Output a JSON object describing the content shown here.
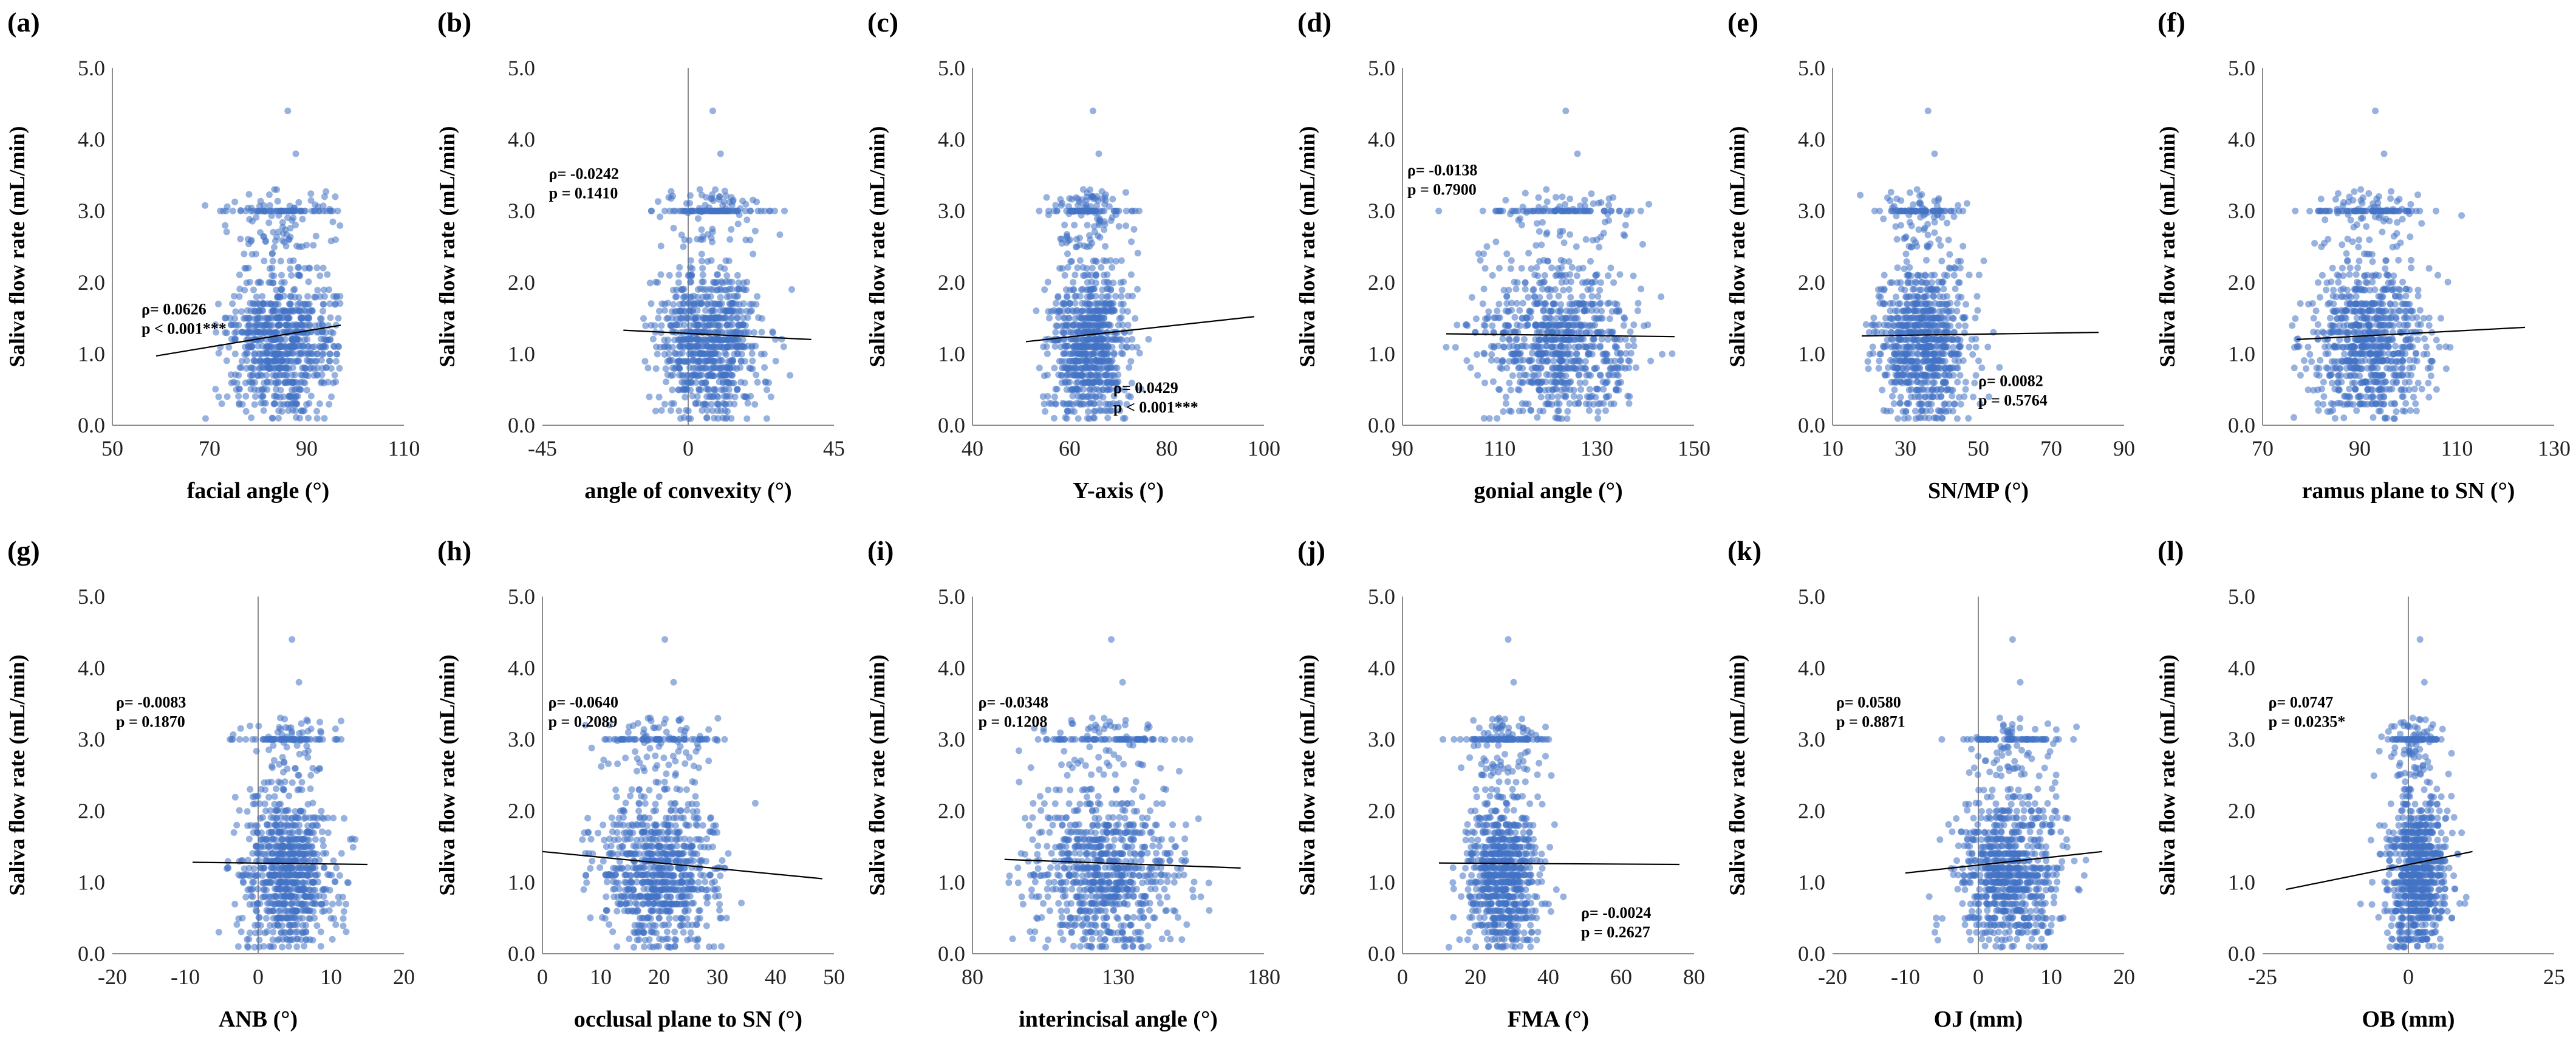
{
  "chart_data": [
    {
      "type": "scatter",
      "letter": "(a)",
      "xlabel": "facial angle (°)",
      "ylabel": "Saliva flow rate (mL/min)",
      "xlim": [
        50,
        110
      ],
      "xticks": [
        "50",
        "70",
        "90",
        "110"
      ],
      "ylim": [
        0,
        5
      ],
      "yticks": [
        "0.0",
        "1.0",
        "2.0",
        "3.0",
        "4.0",
        "5.0"
      ],
      "rho": "ρ= 0.0626",
      "p": "p < 0.001***",
      "annot_x": 56,
      "annot_y": 1.55,
      "cx": 85,
      "sx": 5.5,
      "xmin": 60,
      "xmax": 97,
      "reg": [
        [
          59,
          0.97
        ],
        [
          97,
          1.4
        ]
      ]
    },
    {
      "type": "scatter",
      "letter": "(b)",
      "xlabel": "angle of convexity (°)",
      "ylabel": "Saliva flow rate (mL/min)",
      "xlim": [
        -45,
        45
      ],
      "xticks": [
        "-45",
        "0",
        "45"
      ],
      "ylim": [
        0,
        5
      ],
      "yticks": [
        "0.0",
        "1.0",
        "2.0",
        "3.0",
        "4.0",
        "5.0"
      ],
      "rho": "ρ= -0.0242",
      "p": "p = 0.1410",
      "annot_x": -43,
      "annot_y": 3.45,
      "cx": 6,
      "sx": 8,
      "xmin": -20,
      "xmax": 38,
      "reg": [
        [
          -20,
          1.33
        ],
        [
          38,
          1.2
        ]
      ],
      "vline": 0
    },
    {
      "type": "scatter",
      "letter": "(c)",
      "xlabel": "Y-axis (°)",
      "ylabel": "Saliva flow rate (mL/min)",
      "xlim": [
        40,
        100
      ],
      "xticks": [
        "40",
        "60",
        "80",
        "100"
      ],
      "ylim": [
        0,
        5
      ],
      "yticks": [
        "0.0",
        "1.0",
        "2.0",
        "3.0",
        "4.0",
        "5.0"
      ],
      "rho": "ρ= 0.0429",
      "p": "p < 0.001***",
      "annot_x": 69,
      "annot_y": 0.45,
      "cx": 64,
      "sx": 4,
      "xmin": 50,
      "xmax": 97,
      "reg": [
        [
          51,
          1.17
        ],
        [
          98,
          1.52
        ]
      ]
    },
    {
      "type": "scatter",
      "letter": "(d)",
      "xlabel": "gonial angle (°)",
      "ylabel": "Saliva flow rate (mL/min)",
      "xlim": [
        90,
        150
      ],
      "xticks": [
        "90",
        "110",
        "130",
        "150"
      ],
      "ylim": [
        0,
        5
      ],
      "yticks": [
        "0.0",
        "1.0",
        "2.0",
        "3.0",
        "4.0",
        "5.0"
      ],
      "rho": "ρ= -0.0138",
      "p": "p = 0.7900",
      "annot_x": 91,
      "annot_y": 3.5,
      "cx": 122,
      "sx": 8,
      "xmin": 97,
      "xmax": 147,
      "reg": [
        [
          99,
          1.28
        ],
        [
          146,
          1.24
        ]
      ]
    },
    {
      "type": "scatter",
      "letter": "(e)",
      "xlabel": "SN/MP (°)",
      "ylabel": "Saliva flow rate (mL/min)",
      "xlim": [
        10,
        90
      ],
      "xticks": [
        "10",
        "30",
        "50",
        "70",
        "90"
      ],
      "ylim": [
        0,
        5
      ],
      "yticks": [
        "0.0",
        "1.0",
        "2.0",
        "3.0",
        "4.0",
        "5.0"
      ],
      "rho": "ρ= 0.0082",
      "p": "p = 0.5764",
      "annot_x": 50,
      "annot_y": 0.55,
      "cx": 35,
      "sx": 6,
      "xmin": 16,
      "xmax": 83,
      "reg": [
        [
          18,
          1.25
        ],
        [
          83,
          1.3
        ]
      ]
    },
    {
      "type": "scatter",
      "letter": "(f)",
      "xlabel": "ramus plane to SN (°)",
      "ylabel": "Saliva flow rate (mL/min)",
      "xlim": [
        70,
        130
      ],
      "xticks": [
        "70",
        "90",
        "110",
        "130"
      ],
      "ylim": [
        0,
        5
      ],
      "yticks": [
        "0.0",
        "1.0",
        "2.0",
        "3.0",
        "4.0",
        "5.0"
      ],
      "rho": "",
      "p": "",
      "annot_x": 0,
      "annot_y": 0,
      "cx": 92,
      "sx": 6,
      "xmin": 75,
      "xmax": 124,
      "reg": [
        [
          77,
          1.2
        ],
        [
          124,
          1.37
        ]
      ]
    },
    {
      "type": "scatter",
      "letter": "(g)",
      "xlabel": "ANB (°)",
      "ylabel": "Saliva flow rate (mL/min)",
      "xlim": [
        -20,
        20
      ],
      "xticks": [
        "-20",
        "-10",
        "0",
        "10",
        "20"
      ],
      "ylim": [
        0,
        5
      ],
      "yticks": [
        "0.0",
        "1.0",
        "2.0",
        "3.0",
        "4.0",
        "5.0"
      ],
      "rho": "ρ= -0.0083",
      "p": "p = 0.1870",
      "annot_x": -19.5,
      "annot_y": 3.45,
      "cx": 4,
      "sx": 3.2,
      "xmin": -10,
      "xmax": 15,
      "reg": [
        [
          -9,
          1.28
        ],
        [
          15,
          1.25
        ]
      ],
      "vline": 0
    },
    {
      "type": "scatter",
      "letter": "(h)",
      "xlabel": "occlusal plane to SN (°)",
      "ylabel": "Saliva flow rate (mL/min)",
      "xlim": [
        0,
        50
      ],
      "xticks": [
        "0",
        "10",
        "20",
        "30",
        "40",
        "50"
      ],
      "ylim": [
        0,
        5
      ],
      "yticks": [
        "0.0",
        "1.0",
        "2.0",
        "3.0",
        "4.0",
        "5.0"
      ],
      "rho": "ρ= -0.0640",
      "p": "p = 0.2089",
      "annot_x": 1,
      "annot_y": 3.45,
      "cx": 20,
      "sx": 5,
      "xmin": 2,
      "xmax": 47,
      "reg": [
        [
          0,
          1.43
        ],
        [
          48,
          1.05
        ]
      ]
    },
    {
      "type": "scatter",
      "letter": "(i)",
      "xlabel": "interincisal  angle (°)",
      "ylabel": "Saliva flow rate (mL/min)",
      "xlim": [
        80,
        180
      ],
      "xticks": [
        "80",
        "130",
        "180"
      ],
      "ylim": [
        0,
        5
      ],
      "yticks": [
        "0.0",
        "1.0",
        "2.0",
        "3.0",
        "4.0",
        "5.0"
      ],
      "rho": "ρ= -0.0348",
      "p": "p = 0.1208",
      "annot_x": 82,
      "annot_y": 3.45,
      "cx": 125,
      "sx": 13,
      "xmin": 90,
      "xmax": 172,
      "reg": [
        [
          91,
          1.32
        ],
        [
          172,
          1.2
        ]
      ]
    },
    {
      "type": "scatter",
      "letter": "(j)",
      "xlabel": "FMA (°)",
      "ylabel": "Saliva flow rate (mL/min)",
      "xlim": [
        0,
        80
      ],
      "xticks": [
        "0",
        "20",
        "40",
        "60",
        "80"
      ],
      "ylim": [
        0,
        5
      ],
      "yticks": [
        "0.0",
        "1.0",
        "2.0",
        "3.0",
        "4.0",
        "5.0"
      ],
      "rho": "ρ= -0.0024",
      "p": "p = 0.2627",
      "annot_x": 49,
      "annot_y": 0.5,
      "cx": 28,
      "sx": 5,
      "xmin": 8,
      "xmax": 76,
      "reg": [
        [
          10,
          1.27
        ],
        [
          76,
          1.25
        ]
      ]
    },
    {
      "type": "scatter",
      "letter": "(k)",
      "xlabel": "OJ (mm)",
      "ylabel": "Saliva flow rate (mL/min)",
      "xlim": [
        -20,
        20
      ],
      "xticks": [
        "-20",
        "-10",
        "0",
        "10",
        "20"
      ],
      "ylim": [
        0,
        5
      ],
      "yticks": [
        "0.0",
        "1.0",
        "2.0",
        "3.0",
        "4.0",
        "5.0"
      ],
      "rho": "ρ= 0.0580",
      "p": "p = 0.8871",
      "annot_x": -19.5,
      "annot_y": 3.45,
      "cx": 4,
      "sx": 3.5,
      "xmin": -10,
      "xmax": 17,
      "reg": [
        [
          -10,
          1.13
        ],
        [
          17,
          1.43
        ]
      ],
      "vline": 0
    },
    {
      "type": "scatter",
      "letter": "(l)",
      "xlabel": "OB (mm)",
      "ylabel": "Saliva flow rate (mL/min)",
      "xlim": [
        -25,
        25
      ],
      "xticks": [
        "-25",
        "0",
        "25"
      ],
      "ylim": [
        0,
        5
      ],
      "yticks": [
        "0.0",
        "1.0",
        "2.0",
        "3.0",
        "4.0",
        "5.0"
      ],
      "rho": "ρ= 0.0747",
      "p": "p = 0.0235*",
      "annot_x": -24,
      "annot_y": 3.45,
      "cx": 1.5,
      "sx": 2.5,
      "xmin": -22,
      "xmax": 11,
      "reg": [
        [
          -21,
          0.9
        ],
        [
          11,
          1.43
        ]
      ],
      "vline": 0
    }
  ]
}
